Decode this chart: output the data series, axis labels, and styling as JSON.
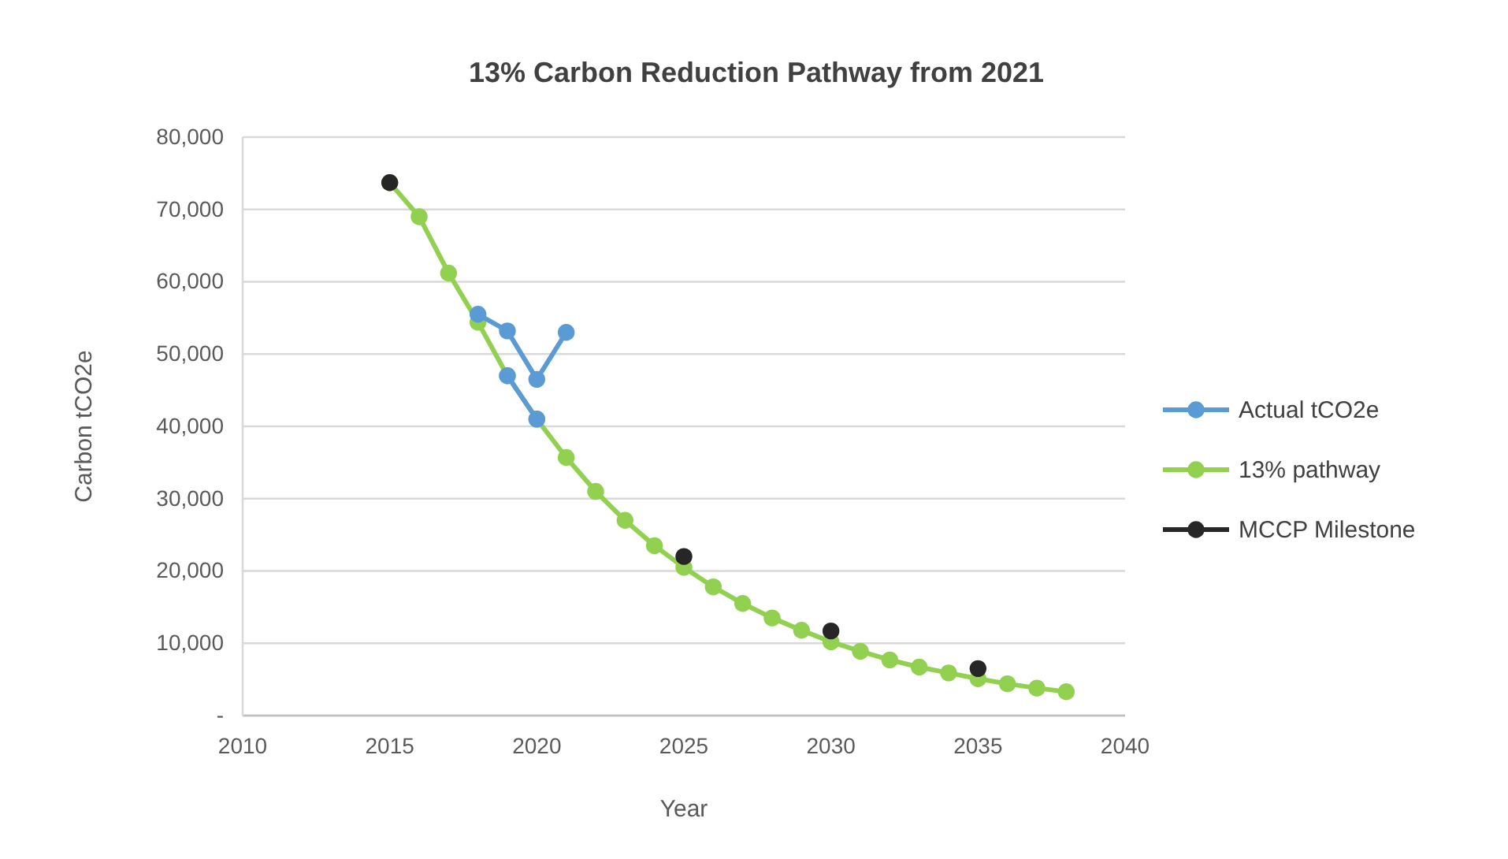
{
  "chart_data": {
    "type": "line",
    "title": "13% Carbon Reduction Pathway from 2021",
    "xlabel": "Year",
    "ylabel": "Carbon tCO2e",
    "xlim": [
      2010,
      2040
    ],
    "xticks": [
      2010,
      2015,
      2020,
      2025,
      2030,
      2035,
      2040
    ],
    "ylim": [
      0,
      80000
    ],
    "yticks": [
      {
        "value": 0,
        "label": "-"
      },
      {
        "value": 10000,
        "label": "10,000"
      },
      {
        "value": 20000,
        "label": "20,000"
      },
      {
        "value": 30000,
        "label": "30,000"
      },
      {
        "value": 40000,
        "label": "40,000"
      },
      {
        "value": 50000,
        "label": "50,000"
      },
      {
        "value": 60000,
        "label": "60,000"
      },
      {
        "value": 70000,
        "label": "70,000"
      },
      {
        "value": 80000,
        "label": "80,000"
      }
    ],
    "grid": "y",
    "legend": "right",
    "marker": "circle",
    "line_style": "solid",
    "series": [
      {
        "color": "#5b9bd5",
        "x": [
          2019,
          2020
        ],
        "values": [
          47000,
          41000
        ]
      },
      {
        "name": "Actual tCO2e",
        "color": "#5b9bd5",
        "x": [
          2018,
          2019,
          2020,
          2021
        ],
        "values": [
          55500,
          53200,
          46500,
          53000
        ]
      },
      {
        "name": "13% pathway",
        "color": "#92d050",
        "x": [
          2015,
          2016,
          2017,
          2018,
          2019,
          2020,
          2021,
          2022,
          2023,
          2024,
          2025,
          2026,
          2027,
          2028,
          2029,
          2030,
          2031,
          2032,
          2033,
          2034,
          2035,
          2036,
          2037,
          2038
        ],
        "values": [
          73700,
          69000,
          61200,
          54400,
          47000,
          41000,
          35700,
          31000,
          27000,
          23500,
          20500,
          17800,
          15500,
          13500,
          11800,
          10200,
          8900,
          7700,
          6700,
          5900,
          5100,
          4400,
          3800,
          3300
        ]
      },
      {
        "name": "MCCP Milestone",
        "type": "scatter",
        "color": "#262626",
        "x": [
          2015,
          2025,
          2030,
          2035
        ],
        "values": [
          73700,
          22000,
          11700,
          6500
        ]
      }
    ]
  }
}
